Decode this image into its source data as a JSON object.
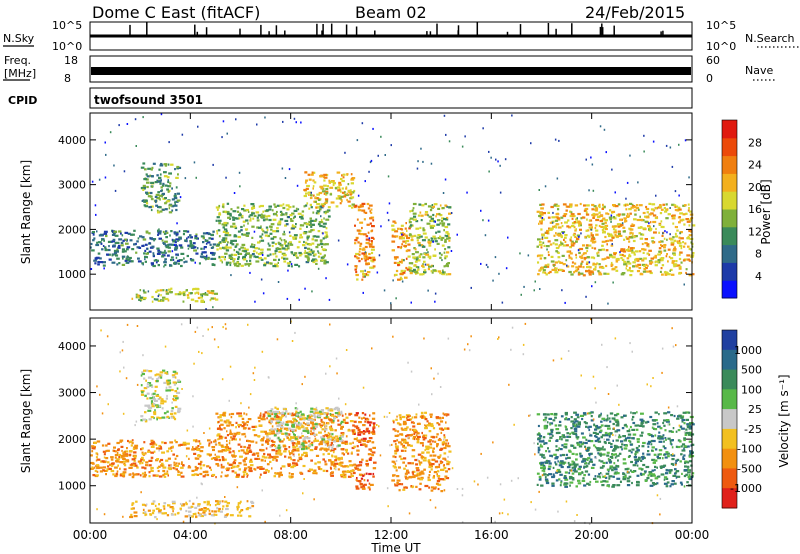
{
  "header": {
    "radar": "Dome C East (fitACF)",
    "beam": "Beam 02",
    "date": "24/Feb/2015"
  },
  "panels": {
    "nsky": {
      "label": "N.Sky",
      "top_tick": "10^5",
      "bottom_tick": "10^0"
    },
    "nsearch": {
      "label": "N.Search",
      "top_tick": "10^5",
      "bottom_tick": "10^0"
    },
    "freq": {
      "label_line1": "Freq.",
      "label_line2": "[MHz]",
      "top_tick": "18",
      "bottom_tick": "8"
    },
    "nave": {
      "label": "Nave",
      "top_tick": "60",
      "bottom_tick": "0"
    },
    "cpid": {
      "label": "CPID",
      "value": "twofsound 3501"
    }
  },
  "chart_data": [
    {
      "type": "heatmap",
      "title": "",
      "xlabel": "Time UT",
      "ylabel": "Slant Range [km]",
      "xlim": [
        0,
        24
      ],
      "ylim": [
        200,
        4600
      ],
      "x_ticks": [
        "00:00",
        "04:00",
        "08:00",
        "12:00",
        "16:00",
        "20:00",
        "00:00"
      ],
      "y_ticks": [
        "1000",
        "2000",
        "3000",
        "4000"
      ],
      "colorbar": {
        "label": "Power [dB]",
        "ticks": [
          "4",
          "8",
          "12",
          "16",
          "20",
          "24",
          "28"
        ],
        "colors": [
          "#0a10ff",
          "#1d3aa8",
          "#2f6a88",
          "#3a8a5a",
          "#7fb03a",
          "#d8d830",
          "#f3b01e",
          "#f07f10",
          "#ec4a0a",
          "#e01a10"
        ]
      },
      "echo_regions": [
        {
          "t_start": 0.0,
          "t_end": 5.0,
          "r_low": 1200,
          "r_high": 2000,
          "power_db": 8
        },
        {
          "t_start": 1.5,
          "t_end": 5.0,
          "r_low": 400,
          "r_high": 700,
          "power_db": 16
        },
        {
          "t_start": 2.0,
          "t_end": 3.5,
          "r_low": 2400,
          "r_high": 3500,
          "power_db": 12
        },
        {
          "t_start": 5.0,
          "t_end": 9.5,
          "r_low": 1200,
          "r_high": 2600,
          "power_db": 14
        },
        {
          "t_start": 8.5,
          "t_end": 10.5,
          "r_low": 2500,
          "r_high": 3300,
          "power_db": 20
        },
        {
          "t_start": 10.5,
          "t_end": 11.3,
          "r_low": 900,
          "r_high": 2600,
          "power_db": 24
        },
        {
          "t_start": 12.0,
          "t_end": 12.7,
          "r_low": 900,
          "r_high": 2200,
          "power_db": 22
        },
        {
          "t_start": 12.7,
          "t_end": 14.3,
          "r_low": 1000,
          "r_high": 2600,
          "power_db": 16
        },
        {
          "t_start": 17.8,
          "t_end": 24.0,
          "r_low": 1000,
          "r_high": 2600,
          "power_db": 20
        }
      ]
    },
    {
      "type": "heatmap",
      "title": "",
      "xlabel": "Time UT",
      "ylabel": "Slant Range [km]",
      "xlim": [
        0,
        24
      ],
      "ylim": [
        200,
        4600
      ],
      "x_ticks": [
        "00:00",
        "04:00",
        "08:00",
        "12:00",
        "16:00",
        "20:00",
        "00:00"
      ],
      "y_ticks": [
        "1000",
        "2000",
        "3000",
        "4000"
      ],
      "colorbar": {
        "label": "Velocity [m s⁻¹]",
        "ticks": [
          "1000",
          "500",
          "100",
          "25",
          "-25",
          "-100",
          "-500",
          "-1000"
        ],
        "colors": [
          "#2040a0",
          "#2a6a8a",
          "#3a8a5a",
          "#58b848",
          "#c8c8c8",
          "#f2c020",
          "#f29010",
          "#ee5a10",
          "#e0201a"
        ]
      },
      "echo_regions": [
        {
          "t_start": 0.0,
          "t_end": 5.0,
          "r_low": 1200,
          "r_high": 2000,
          "velocity_ms": -100
        },
        {
          "t_start": 1.5,
          "t_end": 6.5,
          "r_low": 350,
          "r_high": 700,
          "velocity_ms": -50
        },
        {
          "t_start": 2.0,
          "t_end": 3.5,
          "r_low": 2400,
          "r_high": 3500,
          "velocity_ms": 0
        },
        {
          "t_start": 5.0,
          "t_end": 10.5,
          "r_low": 1200,
          "r_high": 2600,
          "velocity_ms": -100
        },
        {
          "t_start": 7.0,
          "t_end": 10.0,
          "r_low": 1800,
          "r_high": 2700,
          "velocity_ms": 0
        },
        {
          "t_start": 10.5,
          "t_end": 11.3,
          "r_low": 900,
          "r_high": 2600,
          "velocity_ms": -300
        },
        {
          "t_start": 12.0,
          "t_end": 14.3,
          "r_low": 900,
          "r_high": 2600,
          "velocity_ms": -100
        },
        {
          "t_start": 17.8,
          "t_end": 24.0,
          "r_low": 1000,
          "r_high": 2600,
          "velocity_ms": 200
        }
      ]
    }
  ]
}
